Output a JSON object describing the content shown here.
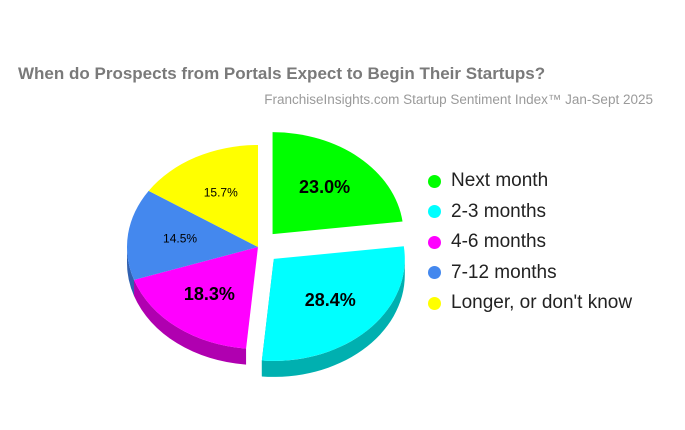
{
  "chart_data": {
    "type": "pie",
    "title": "When do Prospects from Portals Expect to Begin Their Startups?",
    "subtitle": "FranchiseInsights.com Startup Sentiment Index™ Jan-Sept 2025",
    "categories": [
      "Next month",
      "2-3 months",
      "4-6 months",
      "7-12 months",
      "Longer, or don't know"
    ],
    "values": [
      23.0,
      28.4,
      18.3,
      14.5,
      15.7
    ],
    "value_labels": [
      "23.0%",
      "28.4%",
      "18.3%",
      "14.5%",
      "15.7%"
    ],
    "colors": [
      "#00ff00",
      "#00ffff",
      "#ff00ff",
      "#4488ee",
      "#ffff00"
    ],
    "side_colors": [
      "#00b000",
      "#00b0b0",
      "#b000b0",
      "#3060b0",
      "#b0b000"
    ],
    "exploded": [
      true,
      true,
      false,
      false,
      false
    ],
    "legend_position": "right",
    "style": "3d"
  }
}
